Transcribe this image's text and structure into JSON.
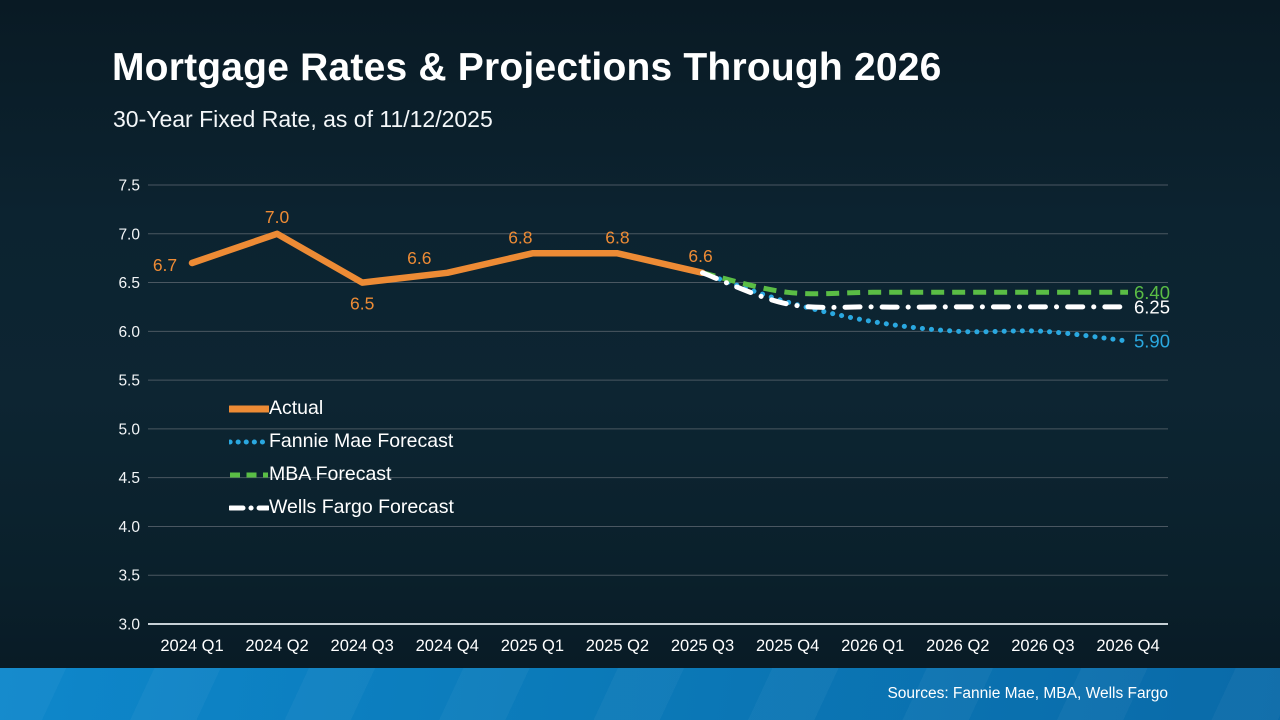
{
  "slide": {
    "title": "Mortgage Rates & Projections Through 2026",
    "subtitle": "30-Year Fixed Rate, as of 11/12/2025",
    "footer": {
      "sources": "Sources: Fannie Mae, MBA, Wells Fargo"
    }
  },
  "colors": {
    "actual": "#ED8B35",
    "fannie_mae": "#2AA8E0",
    "mba": "#5ABD45",
    "wells_fargo": "#FFFFFF",
    "gridline": "#4a5761",
    "axis_line": "#c6d0d6",
    "footer_bar_start": "#0E87CB",
    "footer_bar_end": "#0A6AA8"
  },
  "chart_data": {
    "type": "line",
    "categories": [
      "2024 Q1",
      "2024 Q2",
      "2024 Q3",
      "2024 Q4",
      "2025 Q1",
      "2025 Q2",
      "2025 Q3",
      "2025 Q4",
      "2026 Q1",
      "2026 Q2",
      "2026 Q3",
      "2026 Q4"
    ],
    "y_axis": {
      "min": 3.0,
      "max": 7.5,
      "step": 0.5,
      "tick_labels": [
        "7.5",
        "7.0",
        "6.5",
        "6.0",
        "5.5",
        "5.0",
        "4.5",
        "4.0",
        "3.5",
        "3.0"
      ]
    },
    "grid": true,
    "legend_position": "middle-left",
    "series": [
      {
        "name": "Actual",
        "color": "#ED8B35",
        "style": "solid",
        "smooth": false,
        "z": 2,
        "values": [
          6.7,
          7.0,
          6.5,
          6.6,
          6.8,
          6.8,
          6.6,
          null,
          null,
          null,
          null,
          null
        ],
        "point_labels": [
          {
            "index": 0,
            "text": "6.7",
            "dx": -27,
            "dy": 2
          },
          {
            "index": 1,
            "text": "7.0",
            "dx": 0,
            "dy": -17
          },
          {
            "index": 2,
            "text": "6.5",
            "dx": 0,
            "dy": 21
          },
          {
            "index": 3,
            "text": "6.6",
            "dx": -28,
            "dy": -15
          },
          {
            "index": 4,
            "text": "6.8",
            "dx": -12,
            "dy": -16
          },
          {
            "index": 5,
            "text": "6.8",
            "dx": 0,
            "dy": -16
          },
          {
            "index": 6,
            "text": "6.6",
            "dx": -2,
            "dy": -17
          }
        ]
      },
      {
        "name": "Fannie Mae Forecast",
        "color": "#2AA8E0",
        "style": "dotted",
        "smooth": true,
        "z": 0,
        "values": [
          null,
          null,
          null,
          null,
          null,
          null,
          6.6,
          6.3,
          6.1,
          6.0,
          6.0,
          5.9
        ],
        "end_label": "5.90"
      },
      {
        "name": "MBA Forecast",
        "color": "#5ABD45",
        "style": "dashed",
        "smooth": true,
        "z": 1,
        "values": [
          null,
          null,
          null,
          null,
          null,
          null,
          6.6,
          6.4,
          6.4,
          6.4,
          6.4,
          6.4
        ],
        "end_label": "6.40"
      },
      {
        "name": "Wells Fargo Forecast",
        "color": "#FFFFFF",
        "style": "dash-dot",
        "smooth": true,
        "z": 3,
        "values": [
          null,
          null,
          null,
          null,
          null,
          null,
          6.6,
          6.28,
          6.25,
          6.25,
          6.25,
          6.25
        ],
        "end_label": "6.25"
      }
    ]
  }
}
